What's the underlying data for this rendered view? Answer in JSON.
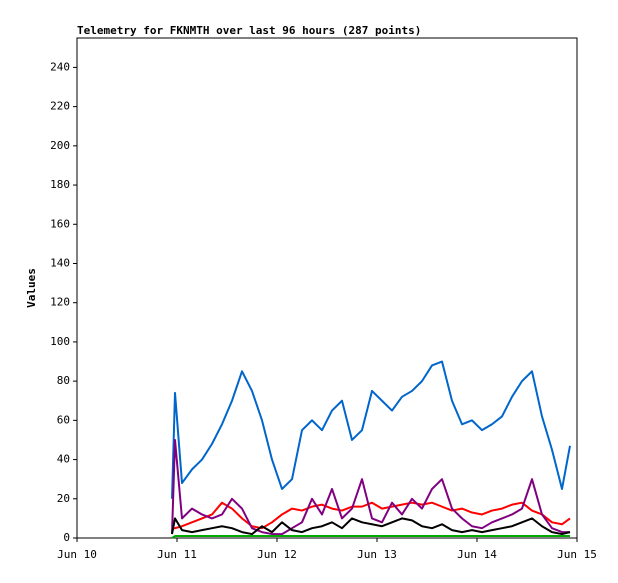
{
  "chart_data": {
    "type": "line",
    "title": "Telemetry for FKNMTH over last 96 hours (287 points)",
    "y_label": "Values",
    "x": [
      0.95,
      0.98,
      1.05,
      1.15,
      1.25,
      1.35,
      1.45,
      1.55,
      1.65,
      1.75,
      1.85,
      1.95,
      2.05,
      2.15,
      2.25,
      2.35,
      2.45,
      2.55,
      2.65,
      2.75,
      2.85,
      2.95,
      3.05,
      3.15,
      3.25,
      3.35,
      3.45,
      3.55,
      3.65,
      3.75,
      3.85,
      3.95,
      4.05,
      4.15,
      4.25,
      4.35,
      4.45,
      4.55,
      4.65,
      4.75,
      4.85,
      4.93
    ],
    "series": [
      {
        "color": "#0066cc",
        "values": [
          20,
          74,
          28,
          35,
          40,
          48,
          58,
          70,
          85,
          75,
          60,
          40,
          25,
          30,
          55,
          60,
          55,
          65,
          70,
          50,
          55,
          75,
          70,
          65,
          72,
          75,
          80,
          88,
          90,
          70,
          58,
          60,
          55,
          58,
          62,
          72,
          80,
          85,
          62,
          45,
          25,
          47
        ]
      },
      {
        "color": "#ff0000",
        "values": [
          5,
          5,
          6,
          8,
          10,
          12,
          18,
          15,
          10,
          6,
          5,
          8,
          12,
          15,
          14,
          16,
          17,
          15,
          14,
          16,
          16,
          18,
          15,
          16,
          17,
          18,
          17,
          18,
          16,
          14,
          15,
          13,
          12,
          14,
          15,
          17,
          18,
          14,
          12,
          8,
          7,
          10
        ]
      },
      {
        "color": "#800080",
        "values": [
          2,
          50,
          10,
          15,
          12,
          10,
          12,
          20,
          15,
          5,
          3,
          2,
          2,
          5,
          8,
          20,
          12,
          25,
          10,
          15,
          30,
          10,
          8,
          18,
          12,
          20,
          15,
          25,
          30,
          15,
          10,
          6,
          5,
          8,
          10,
          12,
          15,
          30,
          12,
          5,
          3,
          3
        ]
      },
      {
        "color": "#000000",
        "values": [
          2,
          10,
          4,
          3,
          4,
          5,
          6,
          5,
          3,
          2,
          6,
          3,
          8,
          4,
          3,
          5,
          6,
          8,
          5,
          10,
          8,
          7,
          6,
          8,
          10,
          9,
          6,
          5,
          7,
          4,
          3,
          4,
          3,
          4,
          5,
          6,
          8,
          10,
          6,
          3,
          2,
          3
        ]
      },
      {
        "color": "#00aa00",
        "values": [
          0,
          1,
          1,
          1,
          1,
          1,
          1,
          1,
          1,
          1,
          1,
          1,
          1,
          1,
          1,
          1,
          1,
          1,
          1,
          1,
          1,
          1,
          1,
          1,
          1,
          1,
          1,
          1,
          1,
          1,
          1,
          1,
          1,
          1,
          1,
          1,
          1,
          1,
          1,
          1,
          1,
          1
        ]
      }
    ],
    "xlim": [
      0,
      5
    ],
    "xticks": [
      {
        "value": 0,
        "label": "Jun 10"
      },
      {
        "value": 1,
        "label": "Jun 11"
      },
      {
        "value": 2,
        "label": "Jun 12"
      },
      {
        "value": 3,
        "label": "Jun 13"
      },
      {
        "value": 4,
        "label": "Jun 14"
      },
      {
        "value": 5,
        "label": "Jun 15"
      }
    ],
    "ylim": [
      0,
      255
    ],
    "yticks": [
      0,
      20,
      40,
      60,
      80,
      100,
      120,
      140,
      160,
      180,
      200,
      220,
      240
    ]
  }
}
